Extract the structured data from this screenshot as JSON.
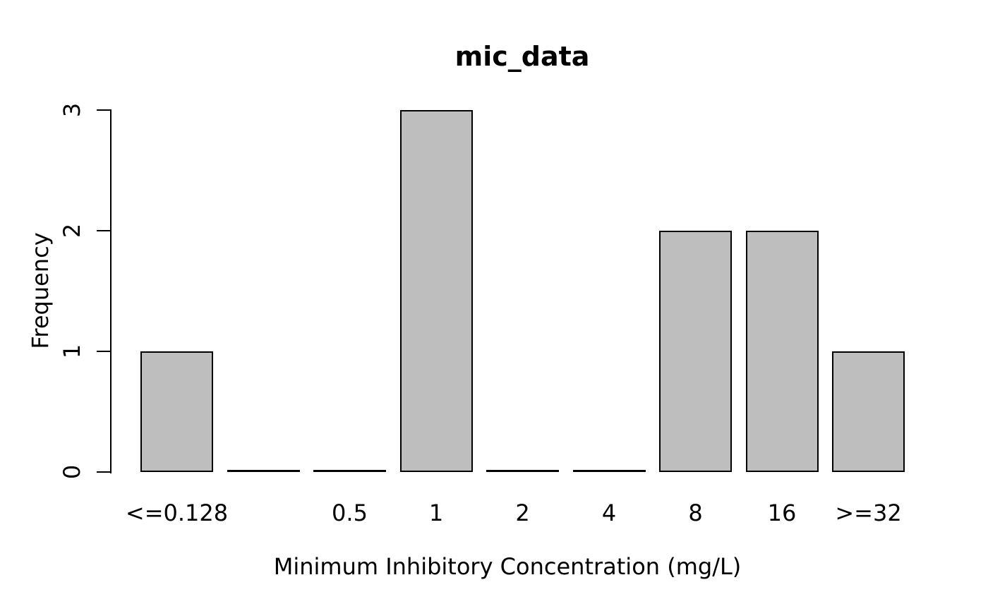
{
  "chart_data": {
    "type": "bar",
    "title": "mic_data",
    "xlabel": "Minimum Inhibitory Concentration (mg/L)",
    "ylabel": "Frequency",
    "categories": [
      "<=0.128",
      "",
      "0.5",
      "1",
      "2",
      "4",
      "8",
      "16",
      ">=32"
    ],
    "values": [
      1,
      0,
      0,
      3,
      0,
      0,
      2,
      2,
      1
    ],
    "yticks": [
      0,
      1,
      2,
      3
    ],
    "ylim": [
      0,
      3
    ],
    "grid": false,
    "legend": false,
    "colors": {
      "bar_fill": "#bebebe",
      "bar_border": "#000000",
      "axis": "#000000",
      "text": "#000000",
      "background": "#ffffff"
    }
  }
}
